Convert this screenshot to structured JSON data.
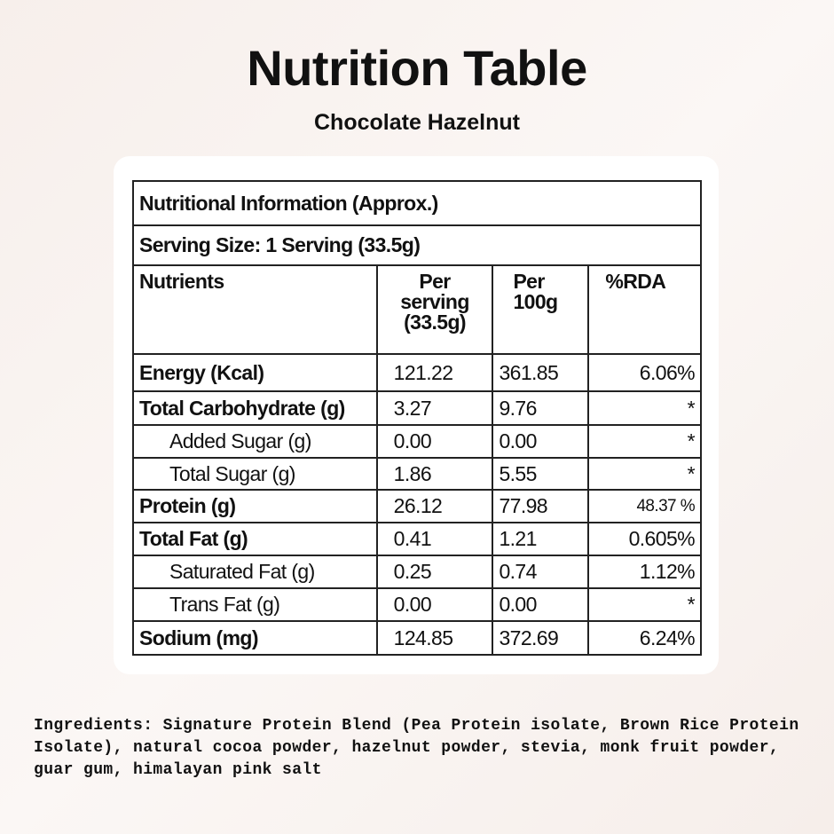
{
  "header": {
    "title": "Nutrition Table",
    "subtitle": "Chocolate Hazelnut"
  },
  "table": {
    "title": "Nutritional Information (Approx.)",
    "serving": "Serving Size: 1 Serving (33.5g)",
    "columns": [
      "Nutrients",
      "Per serving (33.5g)",
      "Per 100g",
      "%RDA"
    ],
    "rows": [
      [
        "Energy (Kcal)",
        "121.22",
        "361.85",
        "6.06%"
      ],
      [
        "Total Carbohydrate (g)",
        "3.27",
        "9.76",
        "*"
      ],
      [
        "Added Sugar (g)",
        "0.00",
        "0.00",
        "*"
      ],
      [
        "Total Sugar (g)",
        "1.86",
        "5.55",
        "*"
      ],
      [
        "Protein (g)",
        "26.12",
        "77.98",
        "48.37 %"
      ],
      [
        "Total Fat (g)",
        "0.41",
        "1.21",
        "0.605%"
      ],
      [
        "Saturated Fat (g)",
        "0.25",
        "0.74",
        "1.12%"
      ],
      [
        "Trans Fat (g)",
        "0.00",
        "0.00",
        "*"
      ],
      [
        "Sodium (mg)",
        "124.85",
        "372.69",
        "6.24%"
      ]
    ]
  },
  "ingredients": "Ingredients: Signature Protein Blend (Pea Protein isolate, Brown Rice Protein Isolate),  natural cocoa powder, hazelnut powder, stevia, monk fruit powder, guar gum, himalayan pink salt"
}
